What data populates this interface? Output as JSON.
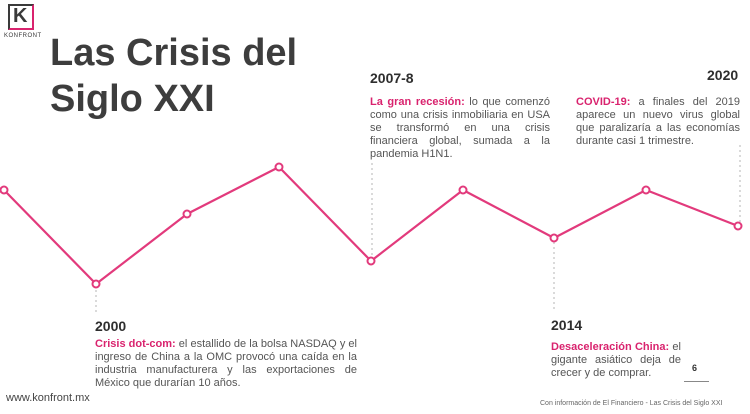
{
  "logo": {
    "letter": "K",
    "word": "KONFRONT"
  },
  "title": "Las Crisis del Siglo XXI",
  "events": [
    {
      "year": "2007-8",
      "label": "La gran recesión:",
      "text": " lo que comenzó como una crisis inmobiliaria en USA se transformó en una crisis financiera global, sumada a la pandemia H1N1."
    },
    {
      "year": "2020",
      "label": "COVID-19:",
      "text": " a finales del 2019 aparece un nuevo virus global que paralizaría a las economías durante casi 1 trimestre."
    },
    {
      "year": "2000",
      "label": "Crisis dot-com:",
      "text": " el estallido de la bolsa NASDAQ y el ingreso de China a la OMC provocó una caída en la industria manufacturera y las exportaciones de México que durarían 10 años."
    },
    {
      "year": "2014",
      "label": "Desaceleración China:",
      "text": " el gigante asiático deja de crecer y de comprar."
    }
  ],
  "footer": {
    "website": "www.konfront.mx",
    "source": "Con información de El Financiero - Las Crisis del Siglo XXI",
    "page": "6"
  },
  "colors": {
    "accent": "#d9236e",
    "text": "#3d3d3d"
  }
}
